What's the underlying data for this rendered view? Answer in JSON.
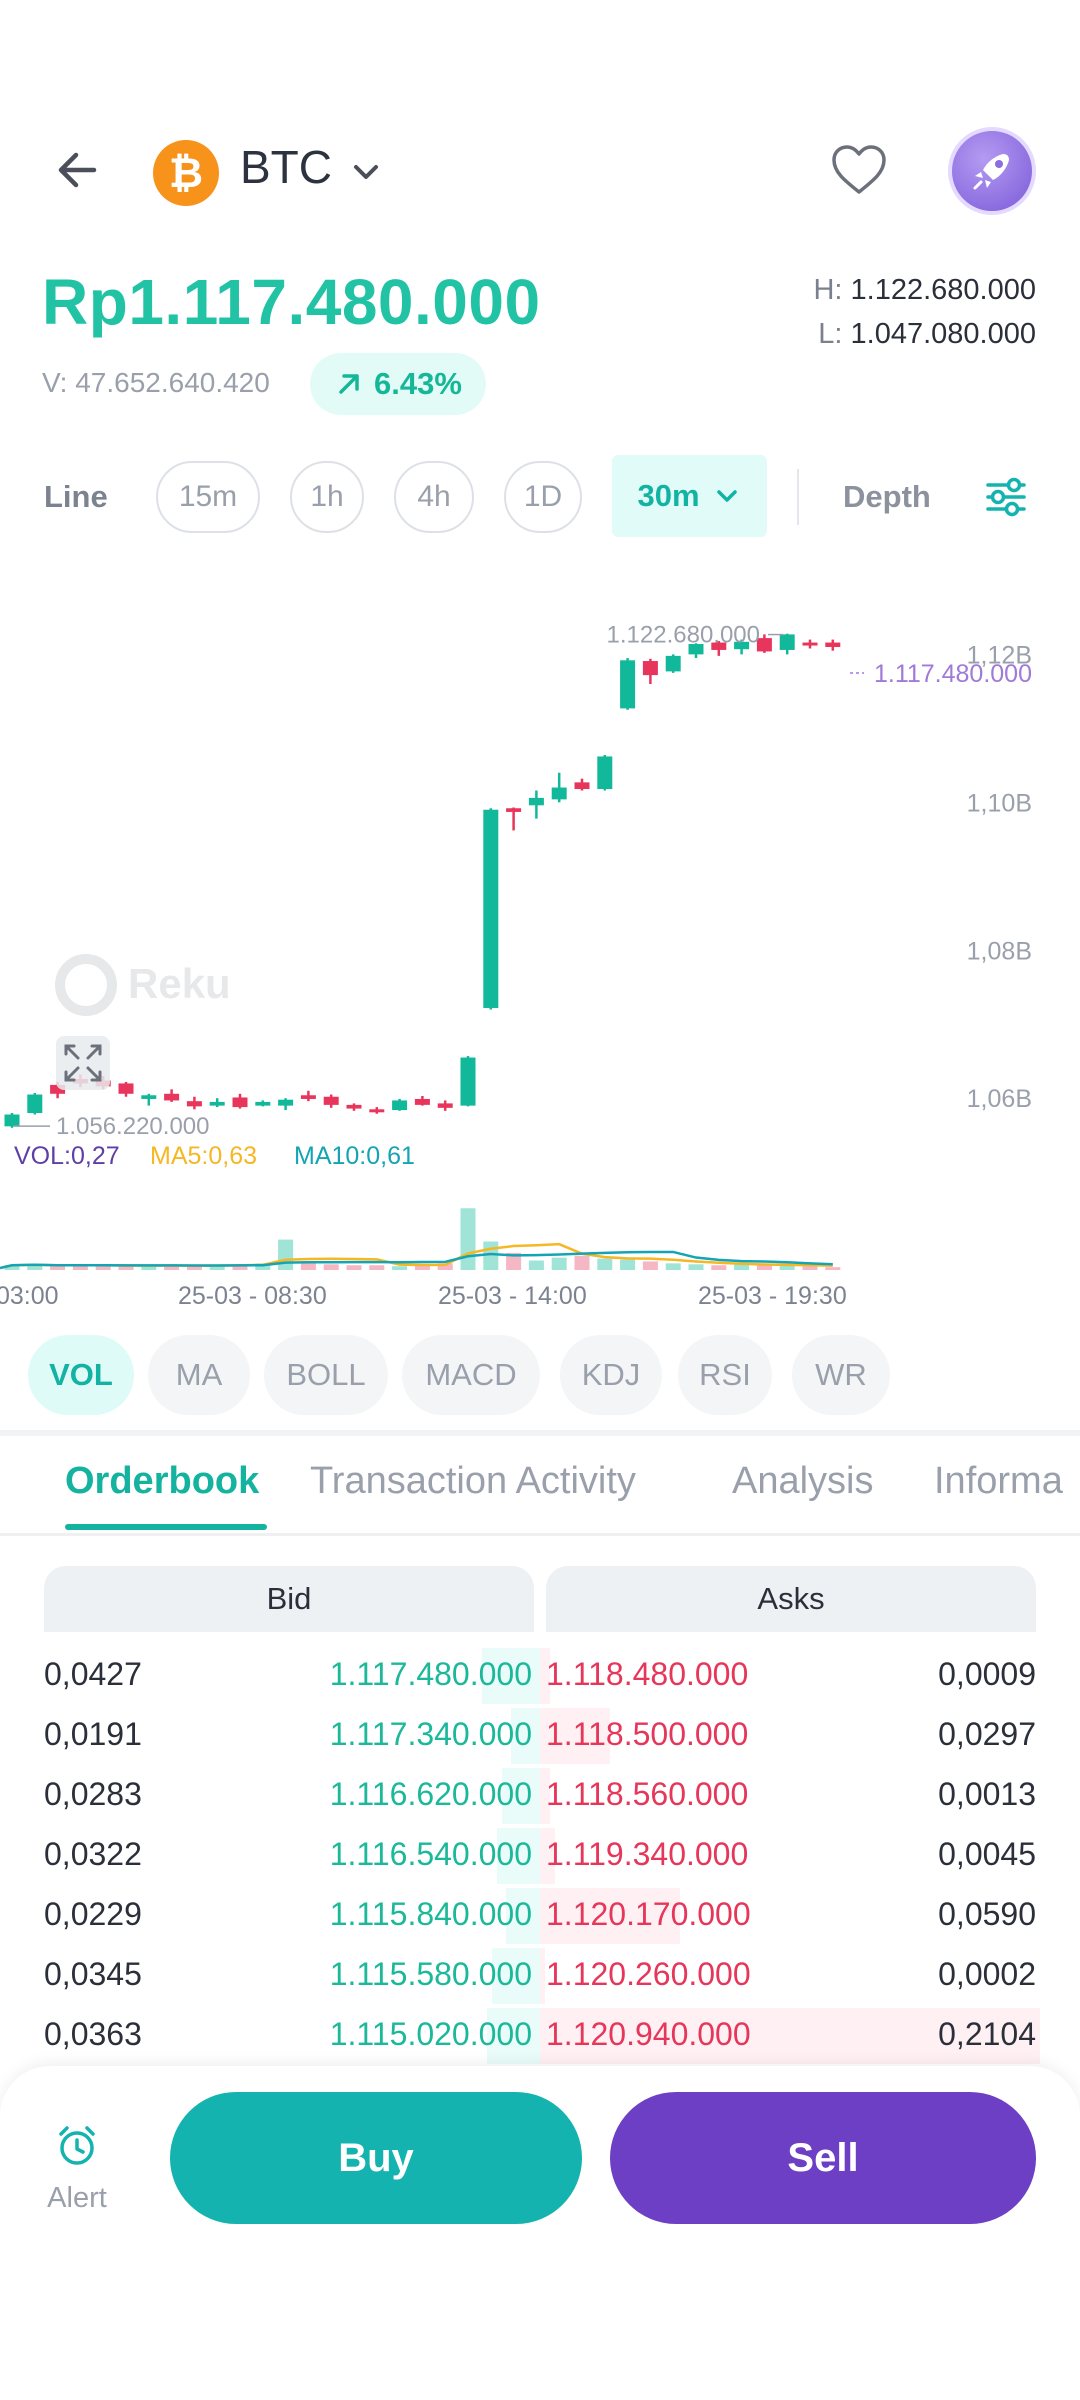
{
  "header": {
    "coin_symbol_glyph": "₿",
    "coin_name": "BTC",
    "icons": [
      "back-arrow-icon",
      "bitcoin-icon",
      "chevron-down-icon",
      "heart-icon",
      "rocket-icon"
    ]
  },
  "price": {
    "last": "Rp1.117.480.000",
    "high_label": "H:",
    "high": "1.122.680.000",
    "low_label": "L:",
    "low": "1.047.080.000",
    "volume": "V: 47.652.640.420",
    "change": "6.43%"
  },
  "timeframes": {
    "line": "Line",
    "options": [
      "15m",
      "1h",
      "4h",
      "1D"
    ],
    "active": "30m",
    "depth": "Depth"
  },
  "chart_data": {
    "type": "candlestick",
    "y_ticks": [
      "1,12B",
      "1,10B",
      "1,08B",
      "1,06B"
    ],
    "x_ticks": [
      "03:00",
      "25-03 - 08:30",
      "25-03 - 14:00",
      "25-03 - 19:30"
    ],
    "high_marker": "1.122.680.000",
    "low_marker": "1.056.220.000",
    "last_marker": "1.117.480.000",
    "watermark": "Reku",
    "vol_label": "VOL:0,27",
    "ma5_label": "MA5:0,63",
    "ma10_label": "MA10:0,61",
    "colors": {
      "up": "#12b89a",
      "down": "#e8355c",
      "ma5": "#f5b724",
      "ma10": "#14a4b3",
      "last": "#a07ad8"
    },
    "candles": [
      {
        "o": 1.0562,
        "c": 1.0578,
        "h": 1.058,
        "l": 1.056
      },
      {
        "o": 1.058,
        "c": 1.0605,
        "h": 1.0607,
        "l": 1.0578
      },
      {
        "o": 1.0618,
        "c": 1.0606,
        "h": 1.0622,
        "l": 1.06
      },
      {
        "o": 1.0626,
        "c": 1.062,
        "h": 1.0632,
        "l": 1.0615
      },
      {
        "o": 1.0624,
        "c": 1.0616,
        "h": 1.063,
        "l": 1.0612
      },
      {
        "o": 1.062,
        "c": 1.0606,
        "h": 1.0622,
        "l": 1.0602
      },
      {
        "o": 1.0599,
        "c": 1.0604,
        "h": 1.0606,
        "l": 1.059
      },
      {
        "o": 1.0606,
        "c": 1.0597,
        "h": 1.0612,
        "l": 1.0595
      },
      {
        "o": 1.0596,
        "c": 1.0589,
        "h": 1.0602,
        "l": 1.0585
      },
      {
        "o": 1.059,
        "c": 1.0595,
        "h": 1.06,
        "l": 1.0588
      },
      {
        "o": 1.0601,
        "c": 1.0588,
        "h": 1.0606,
        "l": 1.0586
      },
      {
        "o": 1.059,
        "c": 1.0595,
        "h": 1.0597,
        "l": 1.0589
      },
      {
        "o": 1.059,
        "c": 1.0598,
        "h": 1.06,
        "l": 1.0584
      },
      {
        "o": 1.0604,
        "c": 1.0599,
        "h": 1.061,
        "l": 1.0596
      },
      {
        "o": 1.0602,
        "c": 1.0591,
        "h": 1.0605,
        "l": 1.0587
      },
      {
        "o": 1.0591,
        "c": 1.0586,
        "h": 1.0593,
        "l": 1.0583
      },
      {
        "o": 1.0585,
        "c": 1.0581,
        "h": 1.0588,
        "l": 1.0579
      },
      {
        "o": 1.0584,
        "c": 1.0597,
        "h": 1.0599,
        "l": 1.0583
      },
      {
        "o": 1.0599,
        "c": 1.0591,
        "h": 1.0603,
        "l": 1.059
      },
      {
        "o": 1.0593,
        "c": 1.0587,
        "h": 1.0597,
        "l": 1.0583
      },
      {
        "o": 1.059,
        "c": 1.0655,
        "h": 1.0657,
        "l": 1.0589
      },
      {
        "o": 1.0722,
        "c": 1.099,
        "h": 1.0992,
        "l": 1.072
      },
      {
        "o": 1.0992,
        "c": 1.0987,
        "h": 1.0993,
        "l": 1.0962
      },
      {
        "o": 1.0996,
        "c": 1.1006,
        "h": 1.1016,
        "l": 1.0978
      },
      {
        "o": 1.1004,
        "c": 1.102,
        "h": 1.104,
        "l": 1.1
      },
      {
        "o": 1.1027,
        "c": 1.1018,
        "h": 1.1032,
        "l": 1.1016
      },
      {
        "o": 1.1018,
        "c": 1.1062,
        "h": 1.1064,
        "l": 1.1016
      },
      {
        "o": 1.1127,
        "c": 1.1192,
        "h": 1.1195,
        "l": 1.1125
      },
      {
        "o": 1.1191,
        "c": 1.1172,
        "h": 1.1194,
        "l": 1.116
      },
      {
        "o": 1.1177,
        "c": 1.1198,
        "h": 1.12,
        "l": 1.1175
      },
      {
        "o": 1.12,
        "c": 1.1214,
        "h": 1.1215,
        "l": 1.1195
      },
      {
        "o": 1.1216,
        "c": 1.1206,
        "h": 1.1218,
        "l": 1.1198
      },
      {
        "o": 1.1207,
        "c": 1.1217,
        "h": 1.122,
        "l": 1.12
      },
      {
        "o": 1.1222,
        "c": 1.1204,
        "h": 1.1227,
        "l": 1.1202
      },
      {
        "o": 1.1206,
        "c": 1.1227,
        "h": 1.1228,
        "l": 1.12
      },
      {
        "o": 1.1216,
        "c": 1.1215,
        "h": 1.122,
        "l": 1.1208
      },
      {
        "o": 1.1216,
        "c": 1.121,
        "h": 1.122,
        "l": 1.1205
      }
    ],
    "volumes": [
      0.05,
      0.06,
      0.04,
      0.05,
      0.05,
      0.04,
      0.05,
      0.05,
      0.04,
      0.05,
      0.06,
      0.07,
      0.32,
      0.08,
      0.06,
      0.05,
      0.05,
      0.04,
      0.06,
      0.07,
      0.65,
      0.3,
      0.18,
      0.1,
      0.13,
      0.15,
      0.12,
      0.11,
      0.09,
      0.07,
      0.06,
      0.05,
      0.06,
      0.05,
      0.05,
      0.04,
      0.03
    ],
    "y_range": [
      1.053,
      1.126
    ]
  },
  "indicators": [
    "VOL",
    "MA",
    "BOLL",
    "MACD",
    "KDJ",
    "RSI",
    "WR"
  ],
  "tabs": [
    "Orderbook",
    "Transaction Activity",
    "Analysis",
    "Informa"
  ],
  "orderbook": {
    "bid_header": "Bid",
    "ask_header": "Asks",
    "rows": [
      {
        "bid_qty": "0,0427",
        "bid_price": "1.117.480.000",
        "ask_price": "1.118.480.000",
        "ask_qty": "0,0009",
        "bid_depth": 0.12,
        "ask_depth": 0.02
      },
      {
        "bid_qty": "0,0191",
        "bid_price": "1.117.340.000",
        "ask_price": "1.118.500.000",
        "ask_qty": "0,0297",
        "bid_depth": 0.06,
        "ask_depth": 0.14
      },
      {
        "bid_qty": "0,0283",
        "bid_price": "1.116.620.000",
        "ask_price": "1.118.560.000",
        "ask_qty": "0,0013",
        "bid_depth": 0.08,
        "ask_depth": 0.02
      },
      {
        "bid_qty": "0,0322",
        "bid_price": "1.116.540.000",
        "ask_price": "1.119.340.000",
        "ask_qty": "0,0045",
        "bid_depth": 0.09,
        "ask_depth": 0.03
      },
      {
        "bid_qty": "0,0229",
        "bid_price": "1.115.840.000",
        "ask_price": "1.120.170.000",
        "ask_qty": "0,0590",
        "bid_depth": 0.07,
        "ask_depth": 0.28
      },
      {
        "bid_qty": "0,0345",
        "bid_price": "1.115.580.000",
        "ask_price": "1.120.260.000",
        "ask_qty": "0,0002",
        "bid_depth": 0.1,
        "ask_depth": 0.01
      },
      {
        "bid_qty": "0,0363",
        "bid_price": "1.115.020.000",
        "ask_price": "1.120.940.000",
        "ask_qty": "0,2104",
        "bid_depth": 0.11,
        "ask_depth": 1.0
      }
    ]
  },
  "actions": {
    "alert": "Alert",
    "buy": "Buy",
    "sell": "Sell"
  }
}
